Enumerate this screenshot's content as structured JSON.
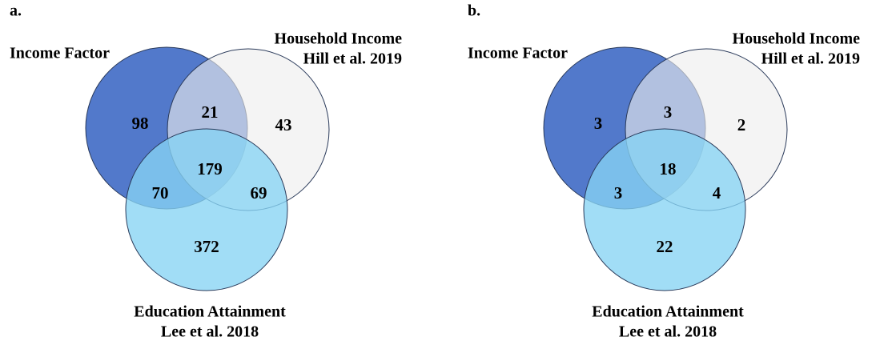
{
  "panels": [
    {
      "label": "a.",
      "sets": [
        {
          "lines": [
            "Income Factor"
          ]
        },
        {
          "lines": [
            "Household Income",
            "Hill et al. 2019"
          ]
        },
        {
          "lines": [
            "Education Attainment",
            "Lee et al. 2018"
          ]
        }
      ],
      "regions": {
        "income_only": 98,
        "income_household": 21,
        "household_only": 43,
        "all_three": 179,
        "income_education": 70,
        "household_education": 69,
        "education_only": 372
      }
    },
    {
      "label": "b.",
      "sets": [
        {
          "lines": [
            "Income Factor"
          ]
        },
        {
          "lines": [
            "Household Income",
            "Hill et al. 2019"
          ]
        },
        {
          "lines": [
            "Education Attainment",
            "Lee et al. 2018"
          ]
        }
      ],
      "regions": {
        "income_only": 3,
        "income_household": 3,
        "household_only": 2,
        "all_three": 18,
        "income_education": 3,
        "household_education": 4,
        "education_only": 22
      }
    }
  ]
}
